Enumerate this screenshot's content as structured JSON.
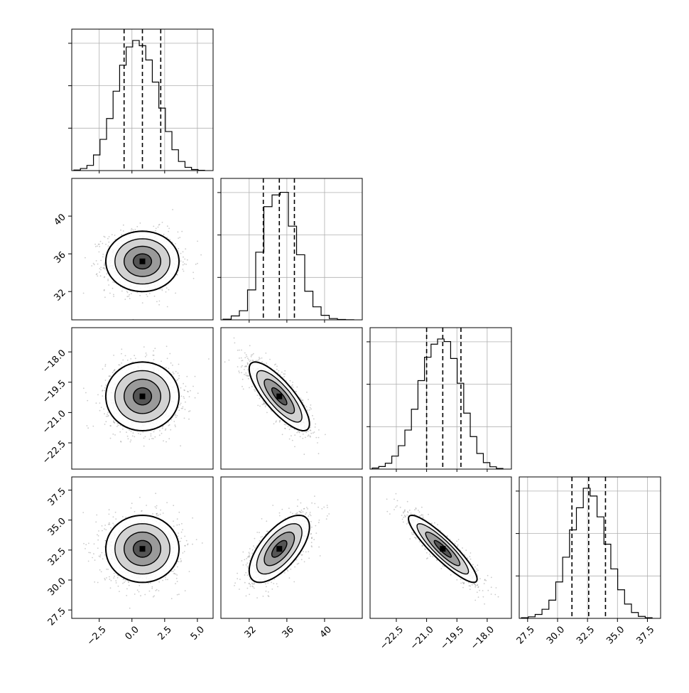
{
  "chart_data": {
    "type": "corner",
    "title": "",
    "grid": true,
    "point_color": "#8c8c8c",
    "line_color": "#000000",
    "params": [
      {
        "name": "",
        "range": [
          -4.6,
          6.2
        ],
        "ticks": [
          -2.5,
          0.0,
          2.5,
          5.0
        ],
        "tick_labels": [
          "−2.5",
          "0.0",
          "2.5",
          "5.0"
        ],
        "quantiles": [
          -0.6,
          0.8,
          2.2
        ],
        "hist": [
          0.004,
          0.016,
          0.04,
          0.12,
          0.24,
          0.4,
          0.61,
          0.81,
          0.95,
          1.0,
          0.96,
          0.85,
          0.68,
          0.48,
          0.3,
          0.16,
          0.07,
          0.025,
          0.008,
          0.002
        ]
      },
      {
        "name": "",
        "range": [
          29.0,
          44.0
        ],
        "ticks": [
          32,
          36,
          40
        ],
        "tick_labels": [
          "32",
          "36",
          "40"
        ],
        "quantiles": [
          33.5,
          35.2,
          36.8
        ],
        "hist": [
          0.005,
          0.03,
          0.07,
          0.23,
          0.52,
          0.87,
          0.96,
          0.98,
          0.72,
          0.5,
          0.22,
          0.1,
          0.035,
          0.01,
          0.003,
          0.001
        ]
      },
      {
        "name": "",
        "range": [
          -23.8,
          -16.8
        ],
        "ticks": [
          -22.5,
          -21.0,
          -19.5,
          -18.0
        ],
        "tick_labels": [
          "−22.5",
          "−21.0",
          "−19.5",
          "−18.0"
        ],
        "quantiles": [
          -21.0,
          -20.2,
          -19.3
        ],
        "hist": [
          0.008,
          0.02,
          0.045,
          0.1,
          0.18,
          0.3,
          0.46,
          0.68,
          0.86,
          0.96,
          1.0,
          0.98,
          0.85,
          0.66,
          0.43,
          0.25,
          0.12,
          0.05,
          0.018,
          0.005
        ]
      },
      {
        "name": "",
        "range": [
          26.8,
          38.6
        ],
        "ticks": [
          27.5,
          30.0,
          32.5,
          35.0,
          37.5
        ],
        "tick_labels": [
          "27.5",
          "30.0",
          "32.5",
          "35.0",
          "37.5"
        ],
        "quantiles": [
          31.2,
          32.6,
          34.0
        ],
        "hist": [
          0.005,
          0.012,
          0.03,
          0.07,
          0.14,
          0.28,
          0.47,
          0.68,
          0.85,
          1.0,
          0.94,
          0.78,
          0.57,
          0.38,
          0.22,
          0.11,
          0.045,
          0.015,
          0.005
        ]
      }
    ],
    "pairs": [
      {
        "x": 0,
        "y": 1,
        "mean": [
          0.8,
          35.2
        ],
        "sd": [
          1.4,
          1.6
        ],
        "rho": 0.0
      },
      {
        "x": 0,
        "y": 2,
        "mean": [
          0.8,
          -20.2
        ],
        "sd": [
          1.4,
          0.85
        ],
        "rho": 0.0
      },
      {
        "x": 1,
        "y": 2,
        "mean": [
          35.2,
          -20.2
        ],
        "sd": [
          1.6,
          0.85
        ],
        "rho": -0.8
      },
      {
        "x": 0,
        "y": 3,
        "mean": [
          0.8,
          32.6
        ],
        "sd": [
          1.4,
          1.4
        ],
        "rho": 0.0
      },
      {
        "x": 1,
        "y": 3,
        "mean": [
          35.2,
          32.6
        ],
        "sd": [
          1.6,
          1.4
        ],
        "rho": 0.65
      },
      {
        "x": 2,
        "y": 3,
        "mean": [
          -20.2,
          32.6
        ],
        "sd": [
          0.85,
          1.4
        ],
        "rho": -0.9
      }
    ]
  }
}
